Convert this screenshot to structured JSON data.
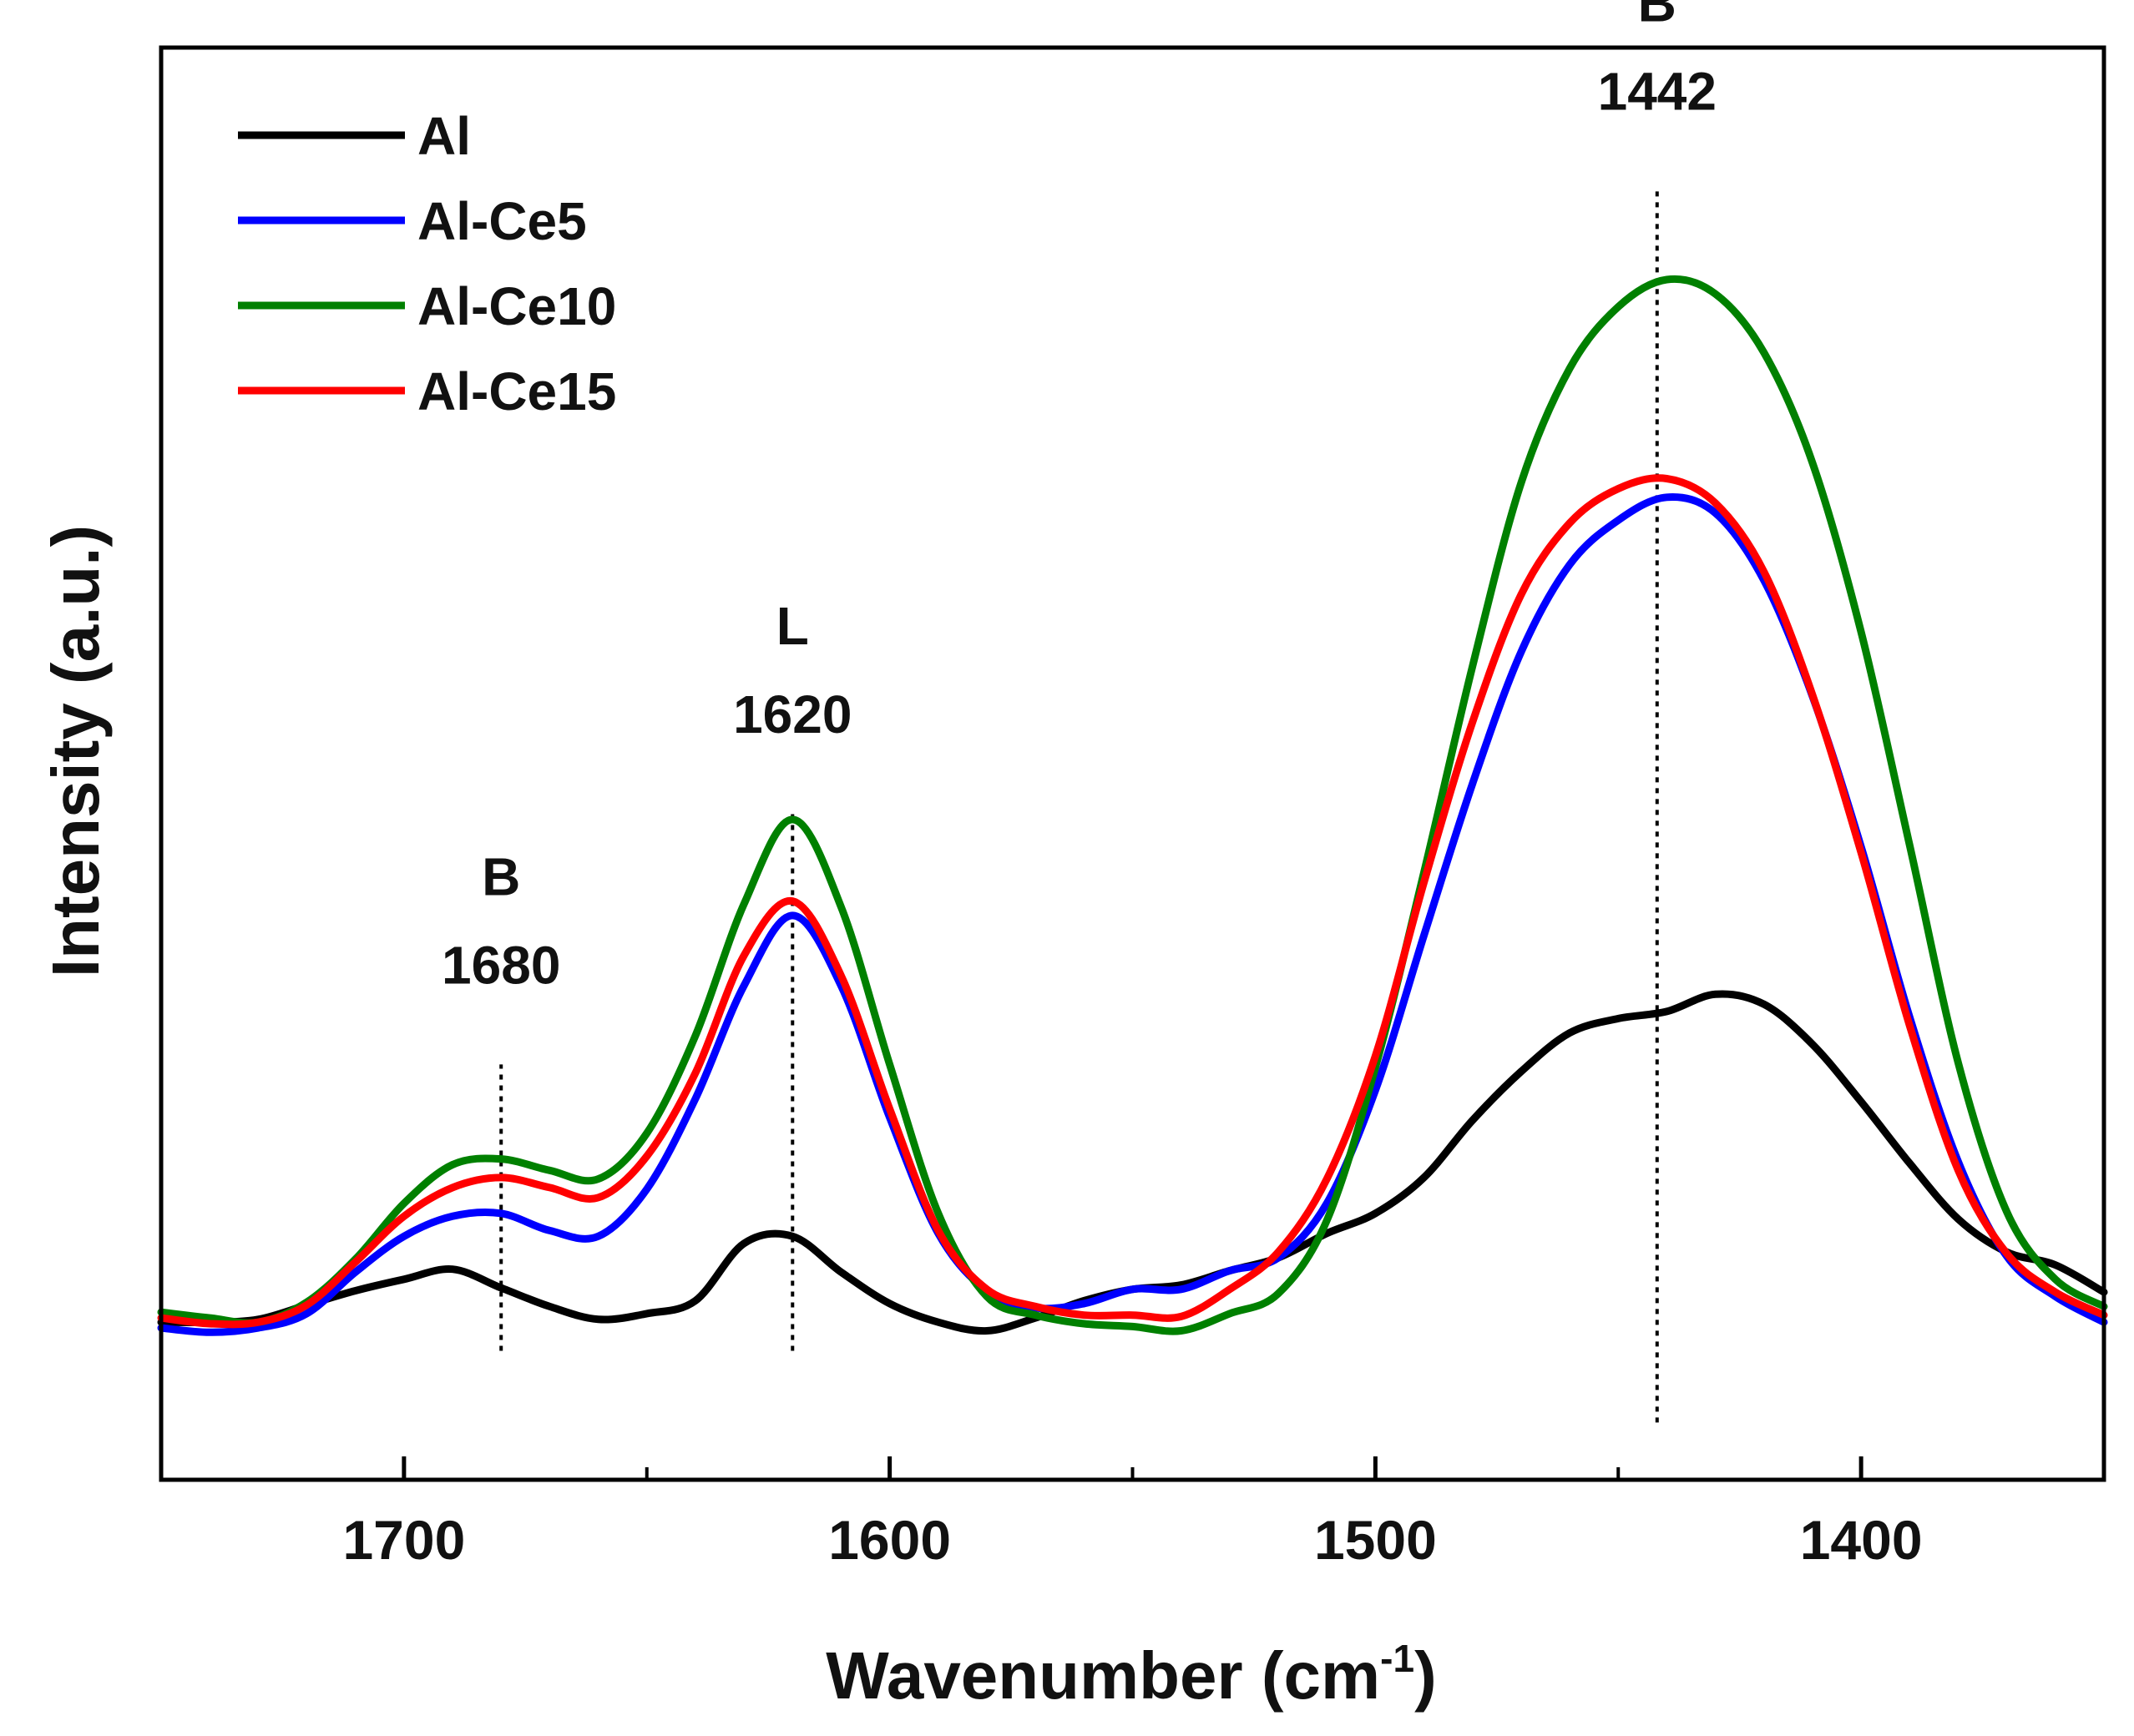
{
  "chart_data": {
    "type": "line",
    "title": "",
    "xlabel": "Wavenumber (cm",
    "xlabel_sup": "-1",
    "xlabel_close": ")",
    "ylabel": "Intensity (a.u.)",
    "xlim": [
      1750,
      1350
    ],
    "ylim": [
      0,
      100
    ],
    "x_reversed": true,
    "y_ticks_shown": false,
    "x_ticks": [
      1700,
      1600,
      1500,
      1400
    ],
    "x_tick_labels": [
      "1700",
      "1600",
      "1500",
      "1400"
    ],
    "grid": false,
    "legend_position": "top-left",
    "series": [
      {
        "name": "Al",
        "color": "#000000",
        "points": [
          [
            1750,
            11.0
          ],
          [
            1740,
            11.0
          ],
          [
            1730,
            11.2
          ],
          [
            1720,
            12.2
          ],
          [
            1710,
            13.2
          ],
          [
            1700,
            14.0
          ],
          [
            1690,
            14.7
          ],
          [
            1680,
            13.4
          ],
          [
            1670,
            12.1
          ],
          [
            1660,
            11.2
          ],
          [
            1650,
            11.6
          ],
          [
            1640,
            12.5
          ],
          [
            1630,
            16.5
          ],
          [
            1620,
            17.0
          ],
          [
            1610,
            14.5
          ],
          [
            1600,
            12.3
          ],
          [
            1590,
            11.0
          ],
          [
            1580,
            10.4
          ],
          [
            1570,
            11.3
          ],
          [
            1560,
            12.5
          ],
          [
            1550,
            13.3
          ],
          [
            1540,
            13.6
          ],
          [
            1530,
            14.6
          ],
          [
            1520,
            15.5
          ],
          [
            1510,
            17.2
          ],
          [
            1500,
            18.6
          ],
          [
            1490,
            21.1
          ],
          [
            1480,
            25.1
          ],
          [
            1470,
            28.5
          ],
          [
            1460,
            31.2
          ],
          [
            1450,
            32.2
          ],
          [
            1440,
            32.7
          ],
          [
            1430,
            33.9
          ],
          [
            1420,
            33.2
          ],
          [
            1410,
            30.4
          ],
          [
            1400,
            26.4
          ],
          [
            1390,
            22.1
          ],
          [
            1380,
            18.2
          ],
          [
            1370,
            15.9
          ],
          [
            1360,
            15.0
          ],
          [
            1350,
            13.1
          ]
        ]
      },
      {
        "name": "Al-Ce5",
        "color": "#0000ff",
        "points": [
          [
            1750,
            10.6
          ],
          [
            1740,
            10.3
          ],
          [
            1730,
            10.6
          ],
          [
            1720,
            11.6
          ],
          [
            1710,
            14.5
          ],
          [
            1700,
            17.0
          ],
          [
            1690,
            18.4
          ],
          [
            1680,
            18.6
          ],
          [
            1670,
            17.4
          ],
          [
            1660,
            17.0
          ],
          [
            1650,
            20.3
          ],
          [
            1640,
            26.6
          ],
          [
            1630,
            34.5
          ],
          [
            1620,
            39.4
          ],
          [
            1610,
            34.5
          ],
          [
            1600,
            25.3
          ],
          [
            1590,
            17.2
          ],
          [
            1580,
            13.2
          ],
          [
            1570,
            12.0
          ],
          [
            1560,
            12.3
          ],
          [
            1550,
            13.3
          ],
          [
            1540,
            13.3
          ],
          [
            1530,
            14.6
          ],
          [
            1520,
            15.5
          ],
          [
            1510,
            19.3
          ],
          [
            1500,
            27.2
          ],
          [
            1490,
            38.0
          ],
          [
            1480,
            48.6
          ],
          [
            1470,
            57.8
          ],
          [
            1460,
            63.9
          ],
          [
            1450,
            67.0
          ],
          [
            1440,
            68.6
          ],
          [
            1430,
            67.5
          ],
          [
            1420,
            62.8
          ],
          [
            1410,
            54.7
          ],
          [
            1400,
            44.2
          ],
          [
            1390,
            32.3
          ],
          [
            1380,
            22.2
          ],
          [
            1370,
            15.6
          ],
          [
            1360,
            12.8
          ],
          [
            1350,
            11.0
          ]
        ]
      },
      {
        "name": "Al-Ce10",
        "color": "#008000",
        "points": [
          [
            1750,
            11.7
          ],
          [
            1740,
            11.3
          ],
          [
            1730,
            11.0
          ],
          [
            1720,
            12.4
          ],
          [
            1710,
            15.4
          ],
          [
            1700,
            19.3
          ],
          [
            1690,
            22.0
          ],
          [
            1680,
            22.4
          ],
          [
            1670,
            21.6
          ],
          [
            1660,
            21.0
          ],
          [
            1650,
            24.2
          ],
          [
            1640,
            31.0
          ],
          [
            1630,
            40.2
          ],
          [
            1620,
            46.1
          ],
          [
            1610,
            40.0
          ],
          [
            1600,
            29.0
          ],
          [
            1590,
            18.6
          ],
          [
            1580,
            12.8
          ],
          [
            1570,
            11.5
          ],
          [
            1560,
            10.9
          ],
          [
            1550,
            10.7
          ],
          [
            1540,
            10.4
          ],
          [
            1530,
            11.6
          ],
          [
            1520,
            13.0
          ],
          [
            1510,
            18.1
          ],
          [
            1500,
            28.8
          ],
          [
            1490,
            42.4
          ],
          [
            1480,
            56.8
          ],
          [
            1470,
            69.6
          ],
          [
            1460,
            77.6
          ],
          [
            1450,
            81.9
          ],
          [
            1440,
            83.8
          ],
          [
            1430,
            82.8
          ],
          [
            1420,
            78.7
          ],
          [
            1410,
            71.0
          ],
          [
            1400,
            59.2
          ],
          [
            1390,
            44.3
          ],
          [
            1380,
            29.1
          ],
          [
            1370,
            18.7
          ],
          [
            1360,
            14.0
          ],
          [
            1350,
            12.1
          ]
        ]
      },
      {
        "name": "Al-Ce15",
        "color": "#ff0000",
        "points": [
          [
            1750,
            11.3
          ],
          [
            1740,
            10.9
          ],
          [
            1730,
            11.0
          ],
          [
            1720,
            12.2
          ],
          [
            1710,
            15.2
          ],
          [
            1700,
            18.4
          ],
          [
            1690,
            20.4
          ],
          [
            1680,
            21.1
          ],
          [
            1670,
            20.4
          ],
          [
            1660,
            19.7
          ],
          [
            1650,
            22.6
          ],
          [
            1640,
            28.4
          ],
          [
            1630,
            36.6
          ],
          [
            1620,
            40.4
          ],
          [
            1610,
            35.2
          ],
          [
            1600,
            25.9
          ],
          [
            1590,
            17.4
          ],
          [
            1580,
            13.3
          ],
          [
            1570,
            12.1
          ],
          [
            1560,
            11.5
          ],
          [
            1550,
            11.5
          ],
          [
            1540,
            11.4
          ],
          [
            1530,
            13.3
          ],
          [
            1520,
            15.9
          ],
          [
            1510,
            21.0
          ],
          [
            1500,
            29.6
          ],
          [
            1490,
            41.7
          ],
          [
            1480,
            52.9
          ],
          [
            1470,
            61.8
          ],
          [
            1460,
            66.8
          ],
          [
            1450,
            69.2
          ],
          [
            1440,
            69.9
          ],
          [
            1430,
            68.2
          ],
          [
            1420,
            63.4
          ],
          [
            1410,
            54.8
          ],
          [
            1400,
            43.8
          ],
          [
            1390,
            31.7
          ],
          [
            1380,
            21.6
          ],
          [
            1370,
            15.8
          ],
          [
            1360,
            13.1
          ],
          [
            1350,
            11.5
          ]
        ]
      }
    ],
    "annotations": [
      {
        "wavenumber": 1680,
        "label": "B",
        "value_label": "1680",
        "line_from": 9,
        "line_to": 29
      },
      {
        "wavenumber": 1620,
        "label": "L",
        "value_label": "1620",
        "line_from": 9,
        "line_to": 46.5
      },
      {
        "wavenumber": 1442,
        "label": "B",
        "value_label": "1442",
        "line_from": 4,
        "line_to": 90
      }
    ]
  }
}
